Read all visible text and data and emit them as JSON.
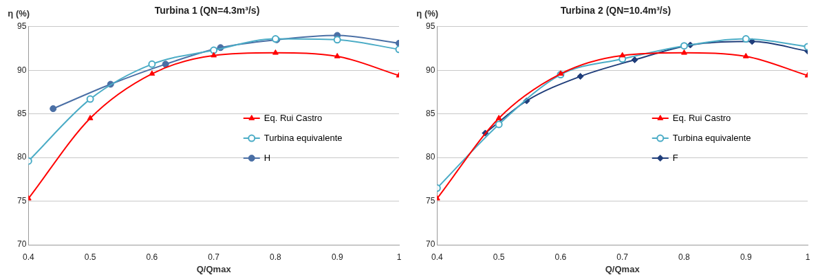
{
  "chart_data": [
    {
      "type": "line",
      "title": "Turbina 1 (QN=4.3m³/s)",
      "xlabel": "Q/Qmax",
      "ylabel": "η (%)",
      "xlim": [
        0.4,
        1
      ],
      "xticks": [
        0.4,
        0.5,
        0.6,
        0.7,
        0.8,
        0.9,
        1
      ],
      "ylim": [
        70,
        95
      ],
      "yticks": [
        70,
        75,
        80,
        85,
        90,
        95
      ],
      "grid": "y",
      "legend": "right",
      "series": [
        {
          "name": "Eq. Rui Castro",
          "color": "#ff0000",
          "marker": "triangle",
          "x": [
            0.4,
            0.5,
            0.6,
            0.7,
            0.8,
            0.9,
            1
          ],
          "values": [
            75.3,
            84.5,
            89.6,
            91.7,
            92.0,
            91.6,
            89.4
          ]
        },
        {
          "name": "Turbina equivalente",
          "color": "#4bacc6",
          "marker": "circle",
          "x": [
            0.4,
            0.5,
            0.6,
            0.7,
            0.8,
            0.9,
            1
          ],
          "values": [
            79.6,
            86.7,
            90.7,
            92.3,
            93.6,
            93.5,
            92.4
          ]
        },
        {
          "name": "H",
          "color": "#4a6fa5",
          "marker": "circle",
          "x": [
            0.44,
            0.533,
            0.622,
            0.711,
            0.802,
            0.9,
            1
          ],
          "values": [
            85.6,
            88.4,
            90.7,
            92.6,
            93.5,
            94.0,
            93.1
          ]
        }
      ]
    },
    {
      "type": "line",
      "title": "Turbina 2 (QN=10.4m³/s)",
      "xlabel": "Q/Qmax",
      "ylabel": "η (%)",
      "xlim": [
        0.4,
        1
      ],
      "xticks": [
        0.4,
        0.5,
        0.6,
        0.7,
        0.8,
        0.9,
        1
      ],
      "ylim": [
        70,
        95
      ],
      "yticks": [
        70,
        75,
        80,
        85,
        90,
        95
      ],
      "grid": "y",
      "legend": "right",
      "series": [
        {
          "name": "Eq. Rui Castro",
          "color": "#ff0000",
          "marker": "triangle",
          "x": [
            0.4,
            0.5,
            0.6,
            0.7,
            0.8,
            0.9,
            1
          ],
          "values": [
            75.3,
            84.5,
            89.6,
            91.7,
            92.0,
            91.6,
            89.4
          ]
        },
        {
          "name": "Turbina equivalente",
          "color": "#4bacc6",
          "marker": "circle",
          "x": [
            0.4,
            0.5,
            0.6,
            0.7,
            0.8,
            0.9,
            1
          ],
          "values": [
            76.5,
            83.8,
            89.5,
            91.3,
            92.8,
            93.6,
            92.7
          ]
        },
        {
          "name": "F",
          "color": "#1f3d7a",
          "marker": "diamond",
          "x": [
            0.478,
            0.545,
            0.632,
            0.72,
            0.81,
            0.91,
            1
          ],
          "values": [
            82.8,
            86.5,
            89.3,
            91.2,
            92.9,
            93.3,
            92.2
          ]
        }
      ]
    }
  ]
}
